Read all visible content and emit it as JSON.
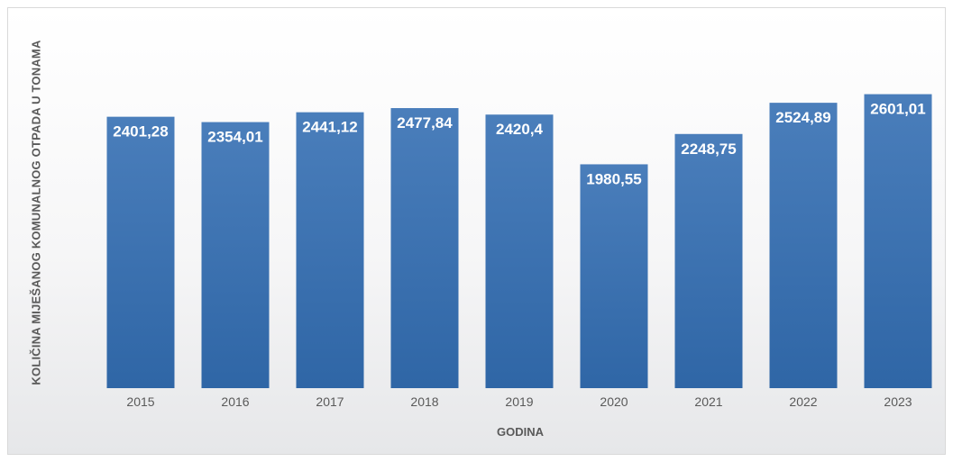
{
  "chart_data": {
    "type": "bar",
    "categories": [
      "2015",
      "2016",
      "2017",
      "2018",
      "2019",
      "2020",
      "2021",
      "2022",
      "2023"
    ],
    "values": [
      2401.28,
      2354.01,
      2441.12,
      2477.84,
      2420.4,
      1980.55,
      2248.75,
      2524.89,
      2601.01
    ],
    "value_labels": [
      "2401,28",
      "2354,01",
      "2441,12",
      "2477,84",
      "2420,4",
      "1980,55",
      "2248,75",
      "2524,89",
      "2601,01"
    ],
    "xlabel": "GODINA",
    "ylabel": "KOLIČINA MIJEŠANOG KOMUNALNOG OTPADA U TONAMA",
    "ylim": [
      0,
      2700
    ],
    "grid": false,
    "legend": "none",
    "colors": {
      "bar_top": "#4a7ebb",
      "bar_bottom": "#2f66a6",
      "label": "#ffffff",
      "text": "#595959"
    }
  }
}
